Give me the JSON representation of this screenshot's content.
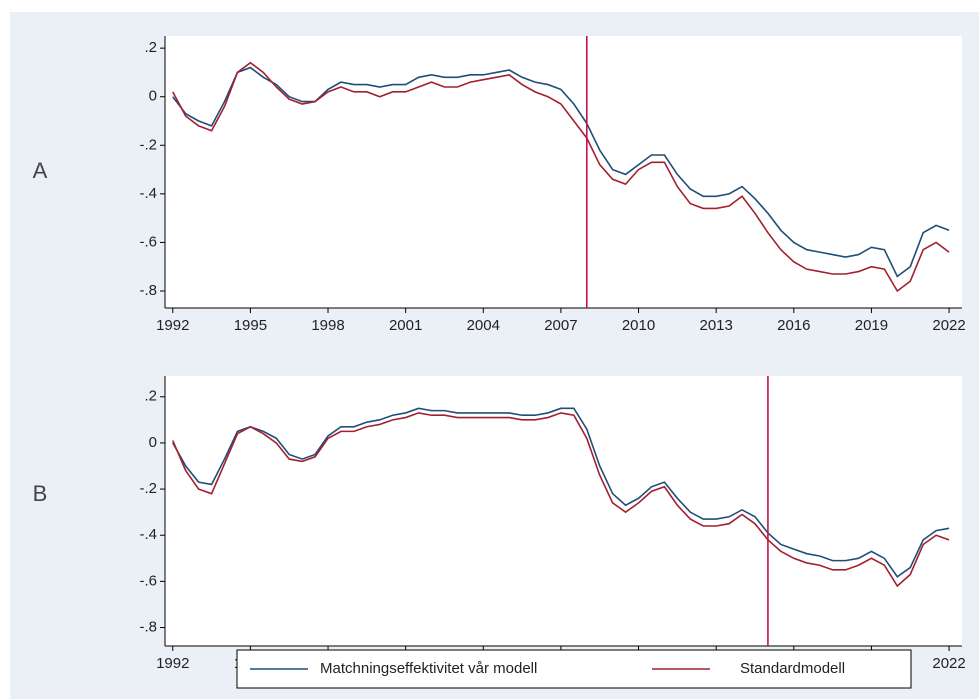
{
  "chart_data": [
    {
      "type": "line",
      "panel_label": "A",
      "x": [
        1992.0,
        1992.5,
        1993.0,
        1993.5,
        1994.0,
        1994.5,
        1995.0,
        1995.5,
        1996.0,
        1996.5,
        1997.0,
        1997.5,
        1998.0,
        1998.5,
        1999.0,
        1999.5,
        2000.0,
        2000.5,
        2001.0,
        2001.5,
        2002.0,
        2002.5,
        2003.0,
        2003.5,
        2004.0,
        2004.5,
        2005.0,
        2005.5,
        2006.0,
        2006.5,
        2007.0,
        2007.5,
        2008.0,
        2008.5,
        2009.0,
        2009.5,
        2010.0,
        2010.5,
        2011.0,
        2011.5,
        2012.0,
        2012.5,
        2013.0,
        2013.5,
        2014.0,
        2014.5,
        2015.0,
        2015.5,
        2016.0,
        2016.5,
        2017.0,
        2017.5,
        2018.0,
        2018.5,
        2019.0,
        2019.5,
        2020.0,
        2020.5,
        2021.0,
        2021.5,
        2022.0
      ],
      "series": [
        {
          "name": "Matchningseffektivitet vår modell",
          "color": "#1f4e79",
          "values": [
            0.0,
            -0.07,
            -0.1,
            -0.12,
            -0.02,
            0.1,
            0.12,
            0.08,
            0.05,
            0.0,
            -0.02,
            -0.02,
            0.03,
            0.06,
            0.05,
            0.05,
            0.04,
            0.05,
            0.05,
            0.08,
            0.09,
            0.08,
            0.08,
            0.09,
            0.09,
            0.1,
            0.11,
            0.08,
            0.06,
            0.05,
            0.03,
            -0.03,
            -0.11,
            -0.22,
            -0.3,
            -0.32,
            -0.28,
            -0.24,
            -0.24,
            -0.32,
            -0.38,
            -0.41,
            -0.41,
            -0.4,
            -0.37,
            -0.42,
            -0.48,
            -0.55,
            -0.6,
            -0.63,
            -0.64,
            -0.65,
            -0.66,
            -0.65,
            -0.62,
            -0.63,
            -0.74,
            -0.7,
            -0.56,
            -0.53,
            -0.55
          ]
        },
        {
          "name": "Standardmodell",
          "color": "#a3202f",
          "values": [
            0.02,
            -0.08,
            -0.12,
            -0.14,
            -0.04,
            0.1,
            0.14,
            0.1,
            0.04,
            -0.01,
            -0.03,
            -0.02,
            0.02,
            0.04,
            0.02,
            0.02,
            0.0,
            0.02,
            0.02,
            0.04,
            0.06,
            0.04,
            0.04,
            0.06,
            0.07,
            0.08,
            0.09,
            0.05,
            0.02,
            0.0,
            -0.03,
            -0.1,
            -0.17,
            -0.28,
            -0.34,
            -0.36,
            -0.3,
            -0.27,
            -0.27,
            -0.37,
            -0.44,
            -0.46,
            -0.46,
            -0.45,
            -0.41,
            -0.48,
            -0.56,
            -0.63,
            -0.68,
            -0.71,
            -0.72,
            -0.73,
            -0.73,
            -0.72,
            -0.7,
            -0.71,
            -0.8,
            -0.76,
            -0.63,
            -0.6,
            -0.64
          ]
        }
      ],
      "xlim": [
        1991.7,
        2022.5
      ],
      "xticks": [
        1992,
        1995,
        1998,
        2001,
        2004,
        2007,
        2010,
        2013,
        2016,
        2019,
        2022
      ],
      "ylim": [
        -0.87,
        0.25
      ],
      "yticks": [
        {
          "value": 0.2,
          "label": ".2"
        },
        0,
        {
          "value": -0.2,
          "label": "-.2"
        },
        {
          "value": -0.4,
          "label": "-.4"
        },
        {
          "value": -0.6,
          "label": "-.6"
        },
        {
          "value": -0.8,
          "label": "-.8"
        }
      ],
      "vline": 2008.0,
      "vline_color": "#c8104a"
    },
    {
      "type": "line",
      "panel_label": "B",
      "x": [
        1992.0,
        1992.5,
        1993.0,
        1993.5,
        1994.0,
        1994.5,
        1995.0,
        1995.5,
        1996.0,
        1996.5,
        1997.0,
        1997.5,
        1998.0,
        1998.5,
        1999.0,
        1999.5,
        2000.0,
        2000.5,
        2001.0,
        2001.5,
        2002.0,
        2002.5,
        2003.0,
        2003.5,
        2004.0,
        2004.5,
        2005.0,
        2005.5,
        2006.0,
        2006.5,
        2007.0,
        2007.5,
        2008.0,
        2008.5,
        2009.0,
        2009.5,
        2010.0,
        2010.5,
        2011.0,
        2011.5,
        2012.0,
        2012.5,
        2013.0,
        2013.5,
        2014.0,
        2014.5,
        2015.0,
        2015.5,
        2016.0,
        2016.5,
        2017.0,
        2017.5,
        2018.0,
        2018.5,
        2019.0,
        2019.5,
        2020.0,
        2020.5,
        2021.0,
        2021.5,
        2022.0
      ],
      "series": [
        {
          "name": "Matchningseffektivitet vår modell",
          "color": "#1f4e79",
          "values": [
            0.0,
            -0.1,
            -0.17,
            -0.18,
            -0.07,
            0.05,
            0.07,
            0.05,
            0.02,
            -0.05,
            -0.07,
            -0.05,
            0.03,
            0.07,
            0.07,
            0.09,
            0.1,
            0.12,
            0.13,
            0.15,
            0.14,
            0.14,
            0.13,
            0.13,
            0.13,
            0.13,
            0.13,
            0.12,
            0.12,
            0.13,
            0.15,
            0.15,
            0.06,
            -0.1,
            -0.22,
            -0.27,
            -0.24,
            -0.19,
            -0.17,
            -0.24,
            -0.3,
            -0.33,
            -0.33,
            -0.32,
            -0.29,
            -0.32,
            -0.39,
            -0.44,
            -0.46,
            -0.48,
            -0.49,
            -0.51,
            -0.51,
            -0.5,
            -0.47,
            -0.5,
            -0.58,
            -0.54,
            -0.42,
            -0.38,
            -0.37
          ]
        },
        {
          "name": "Standardmodell",
          "color": "#a3202f",
          "values": [
            0.01,
            -0.12,
            -0.2,
            -0.22,
            -0.09,
            0.04,
            0.07,
            0.04,
            0.0,
            -0.07,
            -0.08,
            -0.06,
            0.02,
            0.05,
            0.05,
            0.07,
            0.08,
            0.1,
            0.11,
            0.13,
            0.12,
            0.12,
            0.11,
            0.11,
            0.11,
            0.11,
            0.11,
            0.1,
            0.1,
            0.11,
            0.13,
            0.12,
            0.02,
            -0.14,
            -0.26,
            -0.3,
            -0.26,
            -0.21,
            -0.19,
            -0.27,
            -0.33,
            -0.36,
            -0.36,
            -0.35,
            -0.31,
            -0.35,
            -0.42,
            -0.47,
            -0.5,
            -0.52,
            -0.53,
            -0.55,
            -0.55,
            -0.53,
            -0.5,
            -0.53,
            -0.62,
            -0.57,
            -0.44,
            -0.4,
            -0.42
          ]
        }
      ],
      "xlim": [
        1991.7,
        2022.5
      ],
      "xticks": [
        1992,
        1995,
        1998,
        2001,
        2004,
        2007,
        2010,
        2013,
        2016,
        2019,
        2022
      ],
      "ylim": [
        -0.88,
        0.29
      ],
      "yticks": [
        {
          "value": 0.2,
          "label": ".2"
        },
        0,
        {
          "value": -0.2,
          "label": "-.2"
        },
        {
          "value": -0.4,
          "label": "-.4"
        },
        {
          "value": -0.6,
          "label": "-.6"
        },
        {
          "value": -0.8,
          "label": "-.8"
        }
      ],
      "vline": 2015.0,
      "vline_color": "#c8104a"
    }
  ]
}
